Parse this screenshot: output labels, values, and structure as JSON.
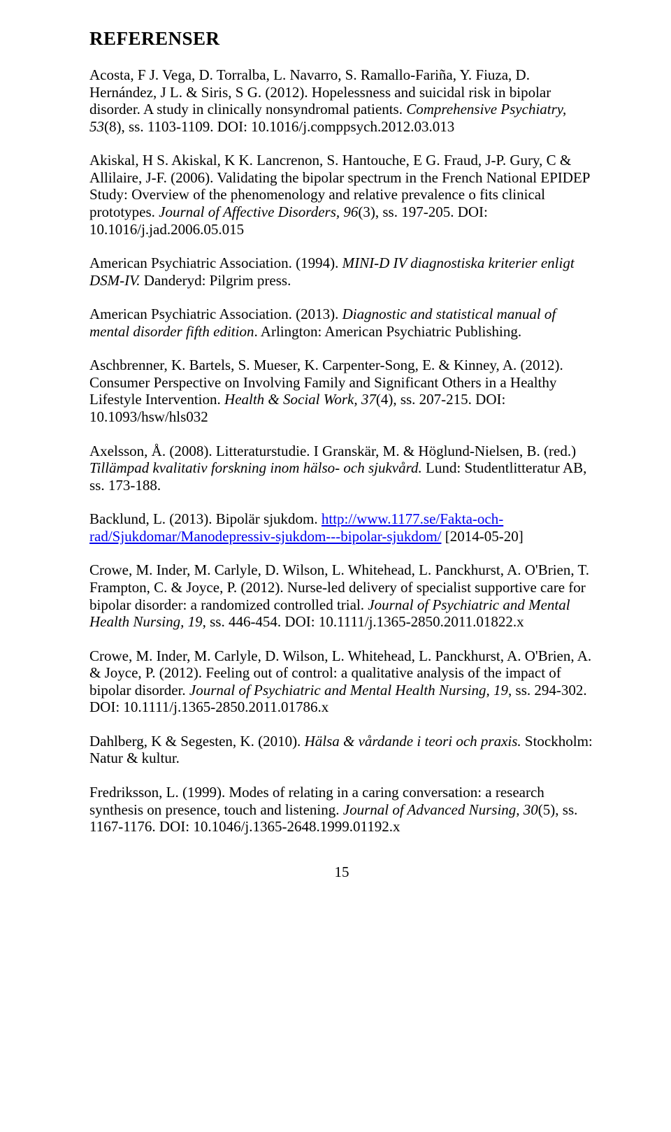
{
  "heading": "REFERENSER",
  "refs": {
    "r1_a": "Acosta, F J. Vega, D. Torralba, L. Navarro, S. Ramallo-Fariña, Y. Fiuza, D. Hernández, J L. & Siris, S G. (2012). Hopelessness and suicidal risk in bipolar disorder. A study in clinically nonsyndromal patients. ",
    "r1_i": "Comprehensive Psychiatry, 53",
    "r1_b": "(8), ss. 1103-1109. DOI: 10.1016/j.comppsych.2012.03.013",
    "r2_a": "Akiskal, H S. Akiskal, K K. Lancrenon, S. Hantouche, E G. Fraud, J-P. Gury, C & Allilaire, J-F. (2006). Validating the bipolar spectrum in the French National EPIDEP Study: Overview of the phenomenology and relative prevalence o fits clinical prototypes. ",
    "r2_i": "Journal of Affective Disorders, 96",
    "r2_b": "(3), ss. 197-205. DOI: 10.1016/j.jad.2006.05.015",
    "r3_a": "American Psychiatric Association. (1994). ",
    "r3_i": "MINI-D IV diagnostiska kriterier enligt DSM-IV.",
    "r3_b": " Danderyd: Pilgrim press.",
    "r4_a": "American Psychiatric Association. (2013). ",
    "r4_i": "Diagnostic and statistical manual of mental disorder fifth edition",
    "r4_b": ". Arlington: American Psychiatric Publishing.",
    "r5_a": "Aschbrenner, K. Bartels, S. Mueser, K. Carpenter-Song, E. & Kinney, A. (2012). Consumer Perspective on Involving Family and Significant Others in a Healthy Lifestyle Intervention. ",
    "r5_i": "Health & Social Work, 37",
    "r5_b": "(4), ss. 207-215. DOI: 10.1093/hsw/hls032",
    "r6_a": "Axelsson, Å. (2008). Litteraturstudie. I Granskär, M. & Höglund-Nielsen, B. (red.) ",
    "r6_i": "Tillämpad kvalitativ forskning inom hälso- och sjukvård.",
    "r6_b": " Lund: Studentlitteratur AB, ss. 173-188.",
    "r7_a": "Backlund, L. (2013). Bipolär sjukdom. ",
    "r7_link": "http://www.1177.se/Fakta-och-rad/Sjukdomar/Manodepressiv-sjukdom---bipolar-sjukdom/",
    "r7_b": " [2014-05-20]",
    "r8_a": "Crowe, M. Inder, M. Carlyle, D. Wilson, L. Whitehead, L. Panckhurst, A. O'Brien, T. Frampton, C. & Joyce, P. (2012). Nurse-led delivery of specialist supportive care for bipolar disorder: a randomized controlled trial. ",
    "r8_i": "Journal of Psychiatric and Mental Health Nursing, 19",
    "r8_b": ", ss. 446-454. DOI: 10.1111/j.1365-2850.2011.01822.x",
    "r9_a": "Crowe, M. Inder, M. Carlyle, D. Wilson, L. Whitehead, L. Panckhurst, A. O'Brien, A. & Joyce, P. (2012). Feeling out of control: a qualitative analysis of the impact of bipolar disorder. ",
    "r9_i": "Journal of Psychiatric and Mental Health Nursing, 19",
    "r9_b": ", ss. 294-302. DOI: 10.1111/j.1365-2850.2011.01786.x",
    "r10_a": "Dahlberg, K & Segesten, K. (2010). ",
    "r10_i": "Hälsa & vårdande i teori och praxis.",
    "r10_b": " Stockholm: Natur & kultur.",
    "r11_a": "Fredriksson, L. (1999). Modes of relating in a caring conversation: a research synthesis on presence, touch and listening. ",
    "r11_i": "Journal of Advanced Nursing, 30",
    "r11_b": "(5), ss. 1167-1176. DOI: 10.1046/j.1365-2648.1999.01192.x"
  },
  "pagenum": "15"
}
